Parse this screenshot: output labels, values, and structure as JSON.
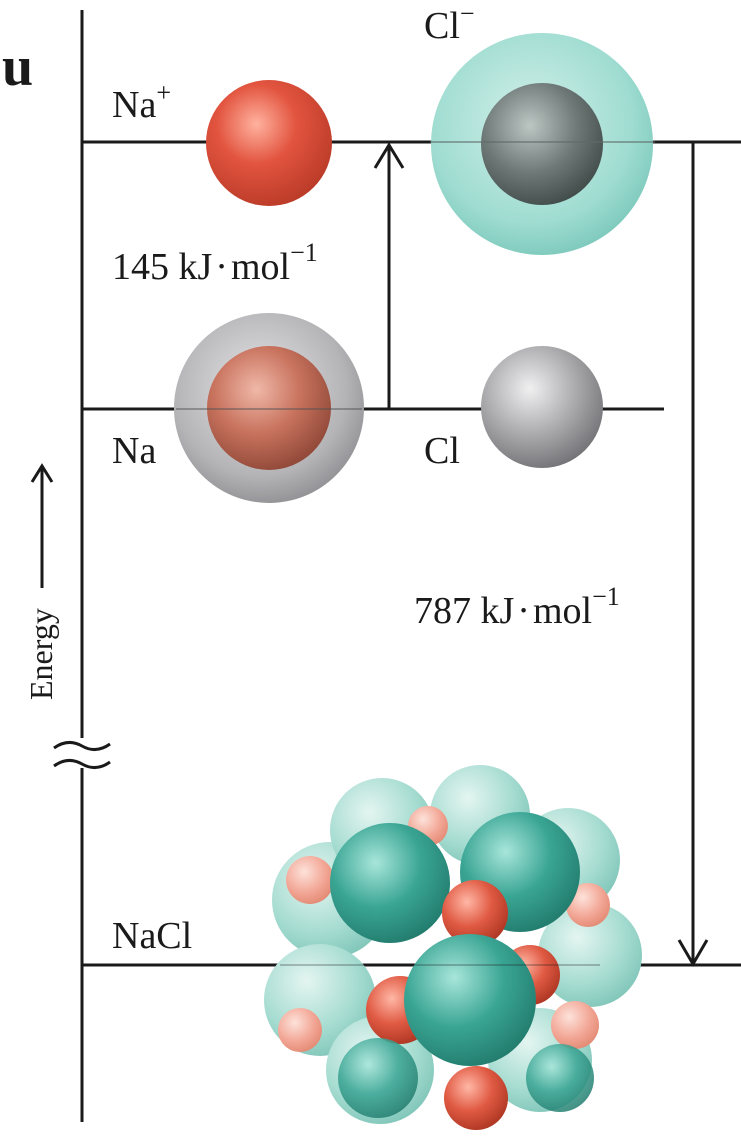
{
  "fragment": "u",
  "axis": {
    "label": "Energy"
  },
  "levels": {
    "ions": {
      "cation_base": "Na",
      "cation_charge": "+",
      "anion_base": "Cl",
      "anion_charge": "−"
    },
    "atoms": {
      "sodium": "Na",
      "chlorine": "Cl"
    },
    "lattice": {
      "label": "NaCl"
    }
  },
  "transitions": {
    "electron_transfer": {
      "value": "145 kJ",
      "dot": "·",
      "unit": "mol",
      "exponent": "−1"
    },
    "lattice_formation": {
      "value": "787 kJ",
      "dot": "·",
      "unit": "mol",
      "exponent": "−1"
    }
  },
  "colors": {
    "sodium_ion": "#e2543f",
    "chloride_shell": "#8fd3c8",
    "chlorine_core": "#6f7a78",
    "sodium_atom_shell": "#a8a8ab",
    "sodium_atom_core": "#c8735e",
    "chlorine_atom": "#a9a9ac",
    "lattice_cl": "#3aa594",
    "lattice_na": "#e05a43",
    "line": "#1a1a1a"
  }
}
